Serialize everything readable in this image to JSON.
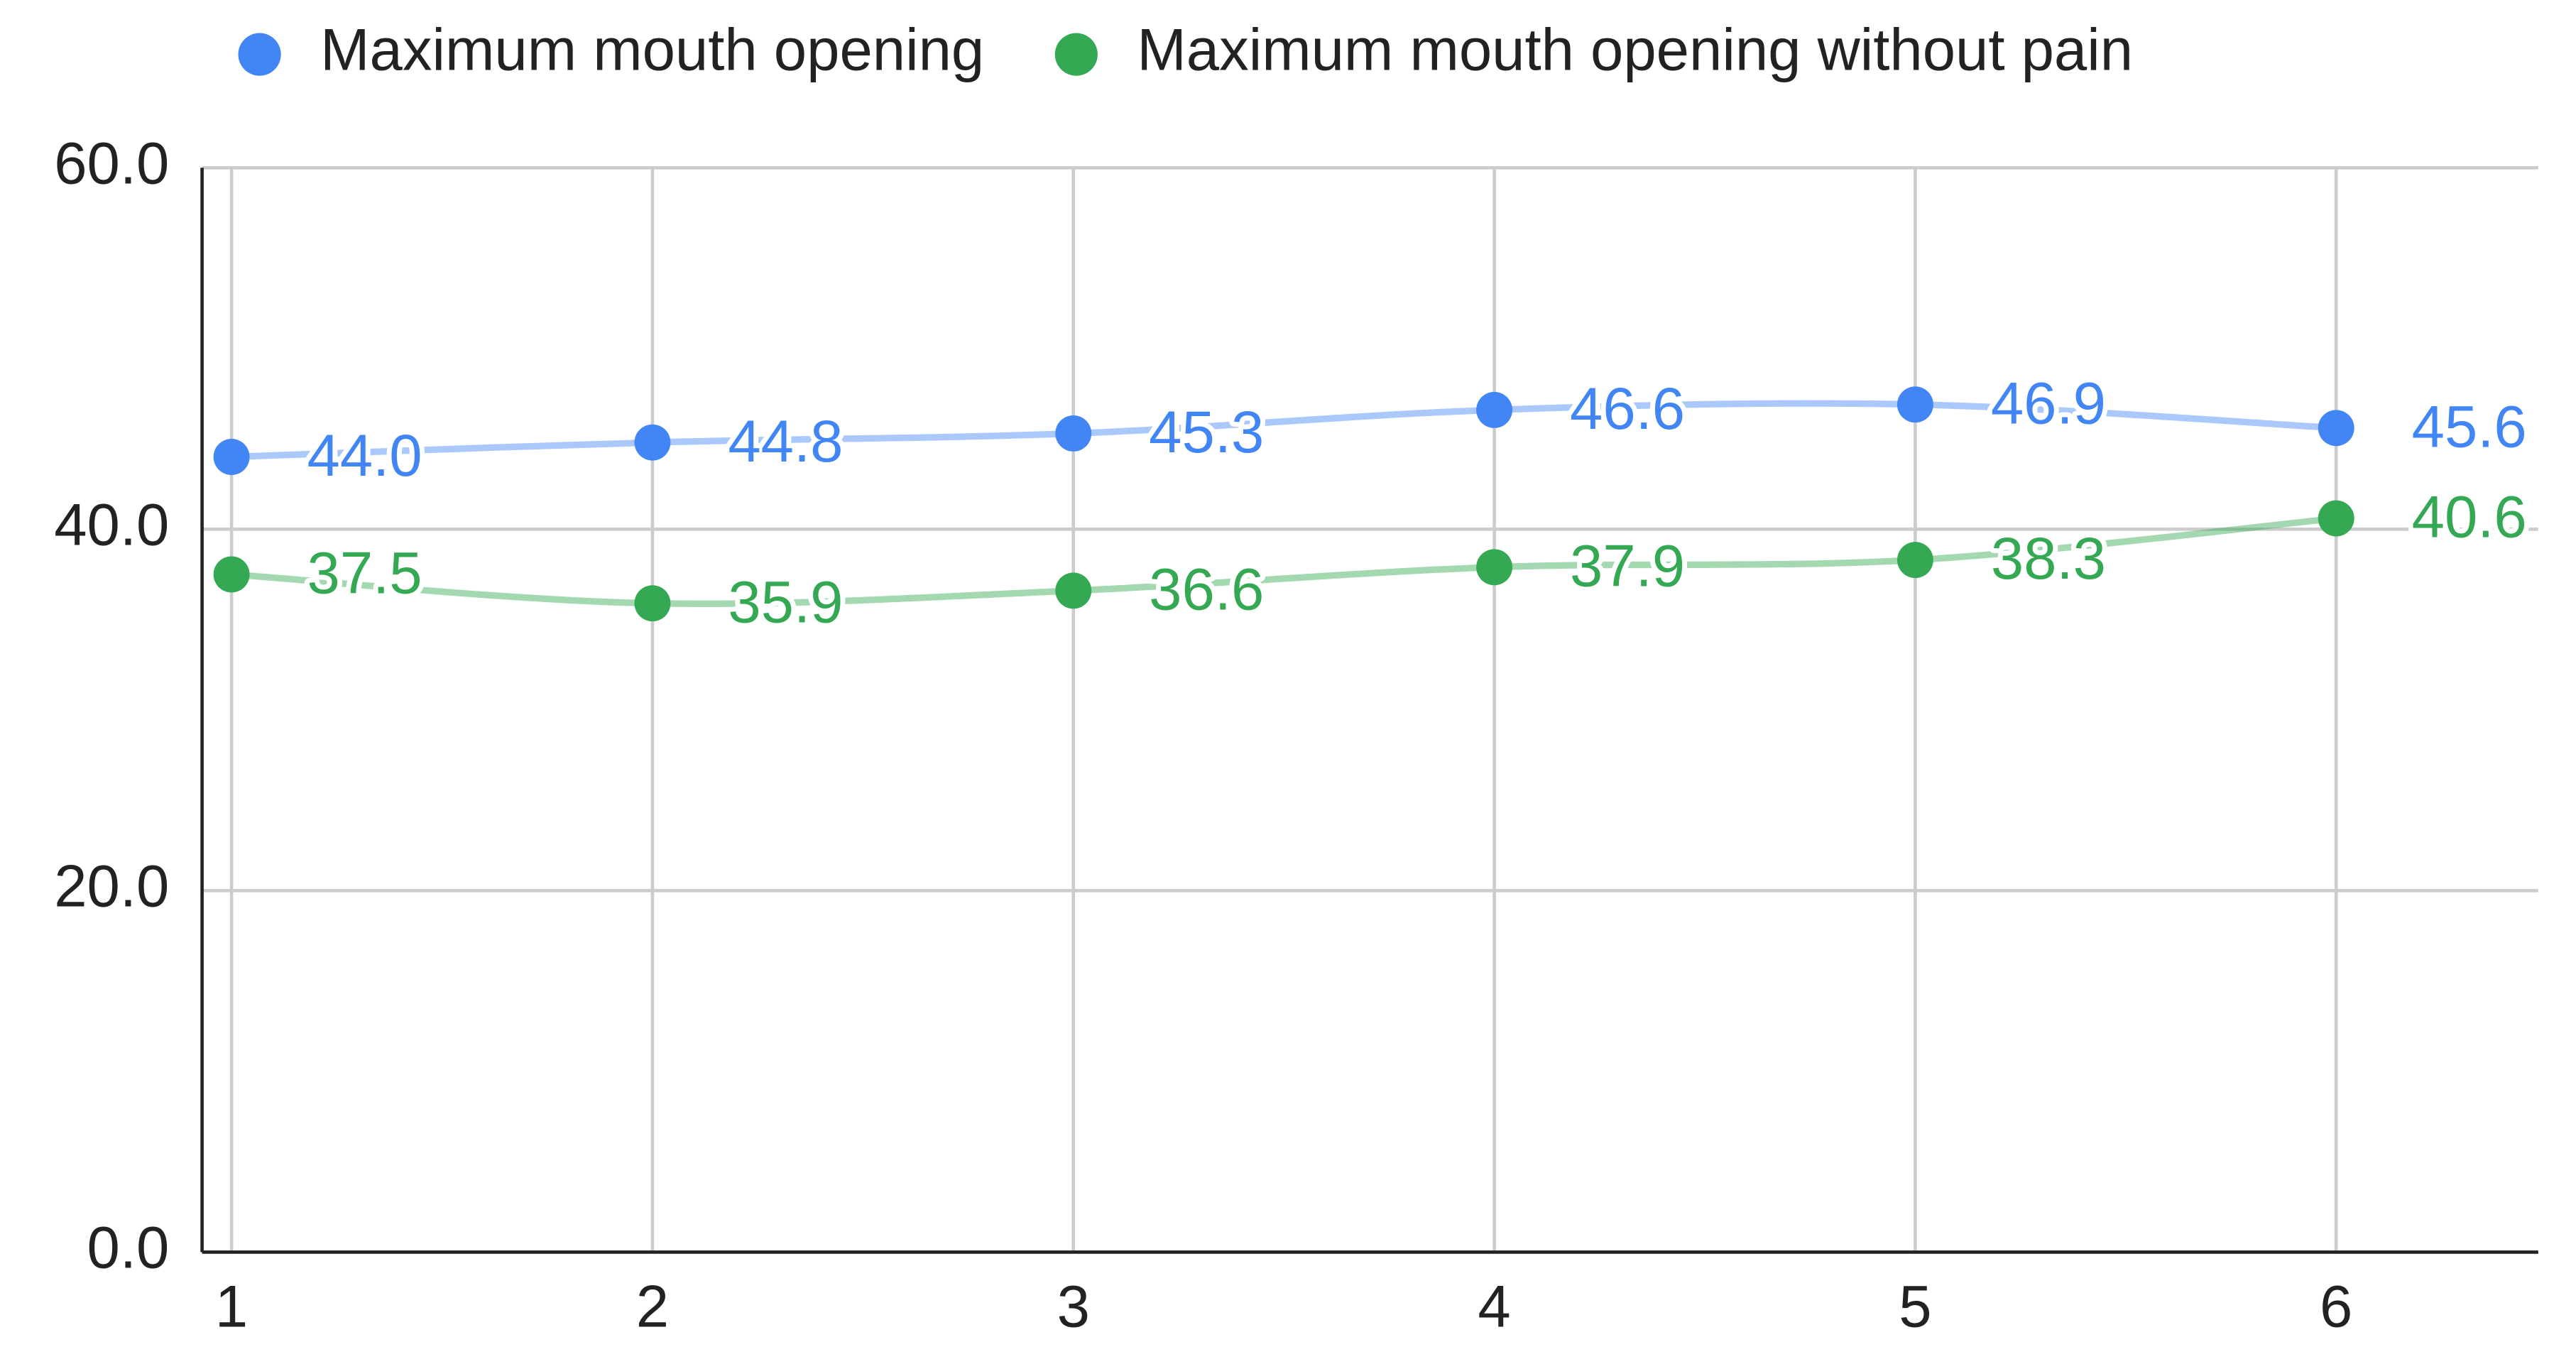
{
  "chart_data": {
    "type": "line",
    "x": [
      1,
      2,
      3,
      4,
      5,
      6
    ],
    "xlim": [
      0.93,
      6.48
    ],
    "xticks": [
      1,
      2,
      3,
      4,
      5,
      6
    ],
    "ylim": [
      0,
      60
    ],
    "yticks": [
      {
        "value": 0,
        "label": "0.0"
      },
      {
        "value": 20,
        "label": "20.0"
      },
      {
        "value": 40,
        "label": "40.0"
      },
      {
        "value": 60,
        "label": "60.0"
      }
    ],
    "grid": true,
    "legend": "top",
    "series": [
      {
        "name": "Maximum mouth opening",
        "color": "#4285f4",
        "values": [
          44.0,
          44.8,
          45.3,
          46.6,
          46.9,
          45.6
        ],
        "value_labels": [
          "44.0",
          "44.8",
          "45.3",
          "46.6",
          "46.9",
          "45.6"
        ]
      },
      {
        "name": "Maximum mouth opening without pain",
        "color": "#34a853",
        "values": [
          37.5,
          35.9,
          36.6,
          37.9,
          38.3,
          40.6
        ],
        "value_labels": [
          "37.5",
          "35.9",
          "36.6",
          "37.9",
          "38.3",
          "40.6"
        ]
      }
    ]
  }
}
